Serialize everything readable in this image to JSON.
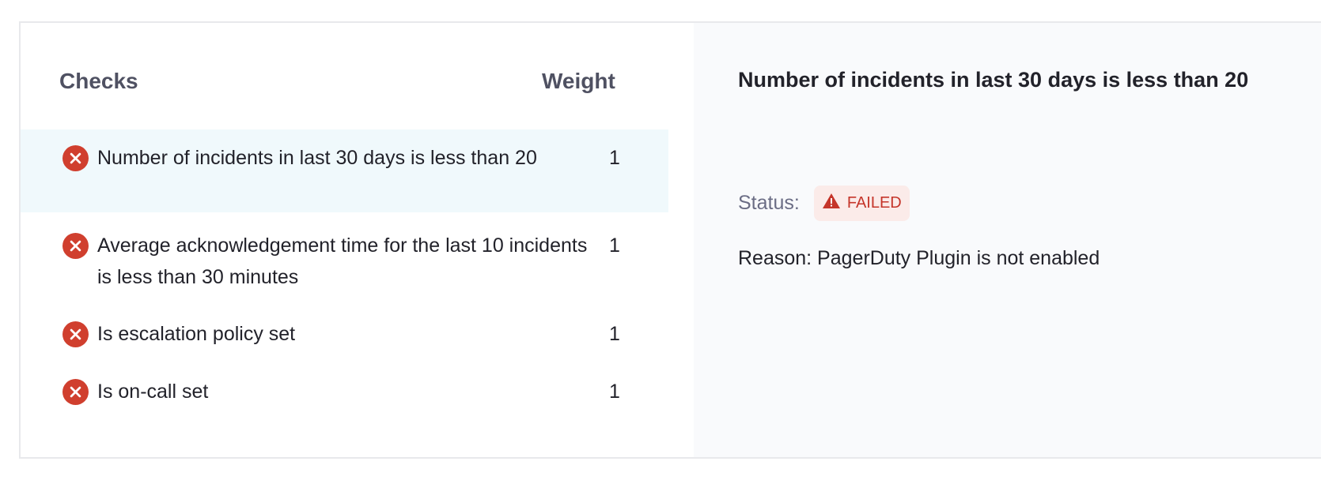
{
  "checks_header": "Checks",
  "weight_header": "Weight",
  "checks": [
    {
      "label": "Number of incidents in last 30 days is less than 20",
      "weight": "1",
      "status_icon": "x-circle-icon",
      "selected": true
    },
    {
      "label": "Average acknowledgement time for the last 10 incidents is less than 30 minutes",
      "weight": "1",
      "status_icon": "x-circle-icon",
      "selected": false
    },
    {
      "label": "Is escalation policy set",
      "weight": "1",
      "status_icon": "x-circle-icon",
      "selected": false
    },
    {
      "label": "Is on-call set",
      "weight": "1",
      "status_icon": "x-circle-icon",
      "selected": false
    }
  ],
  "detail": {
    "title": "Number of incidents in last 30 days is less than 20",
    "status_label": "Status:",
    "status_value": "FAILED",
    "status_icon": "warning-triangle-icon",
    "reason": "Reason: PagerDuty Plugin is not enabled"
  },
  "colors": {
    "failed": "#d03f2e",
    "failed_bg": "#fbebe9",
    "selected_row": "#f0f9fc"
  }
}
